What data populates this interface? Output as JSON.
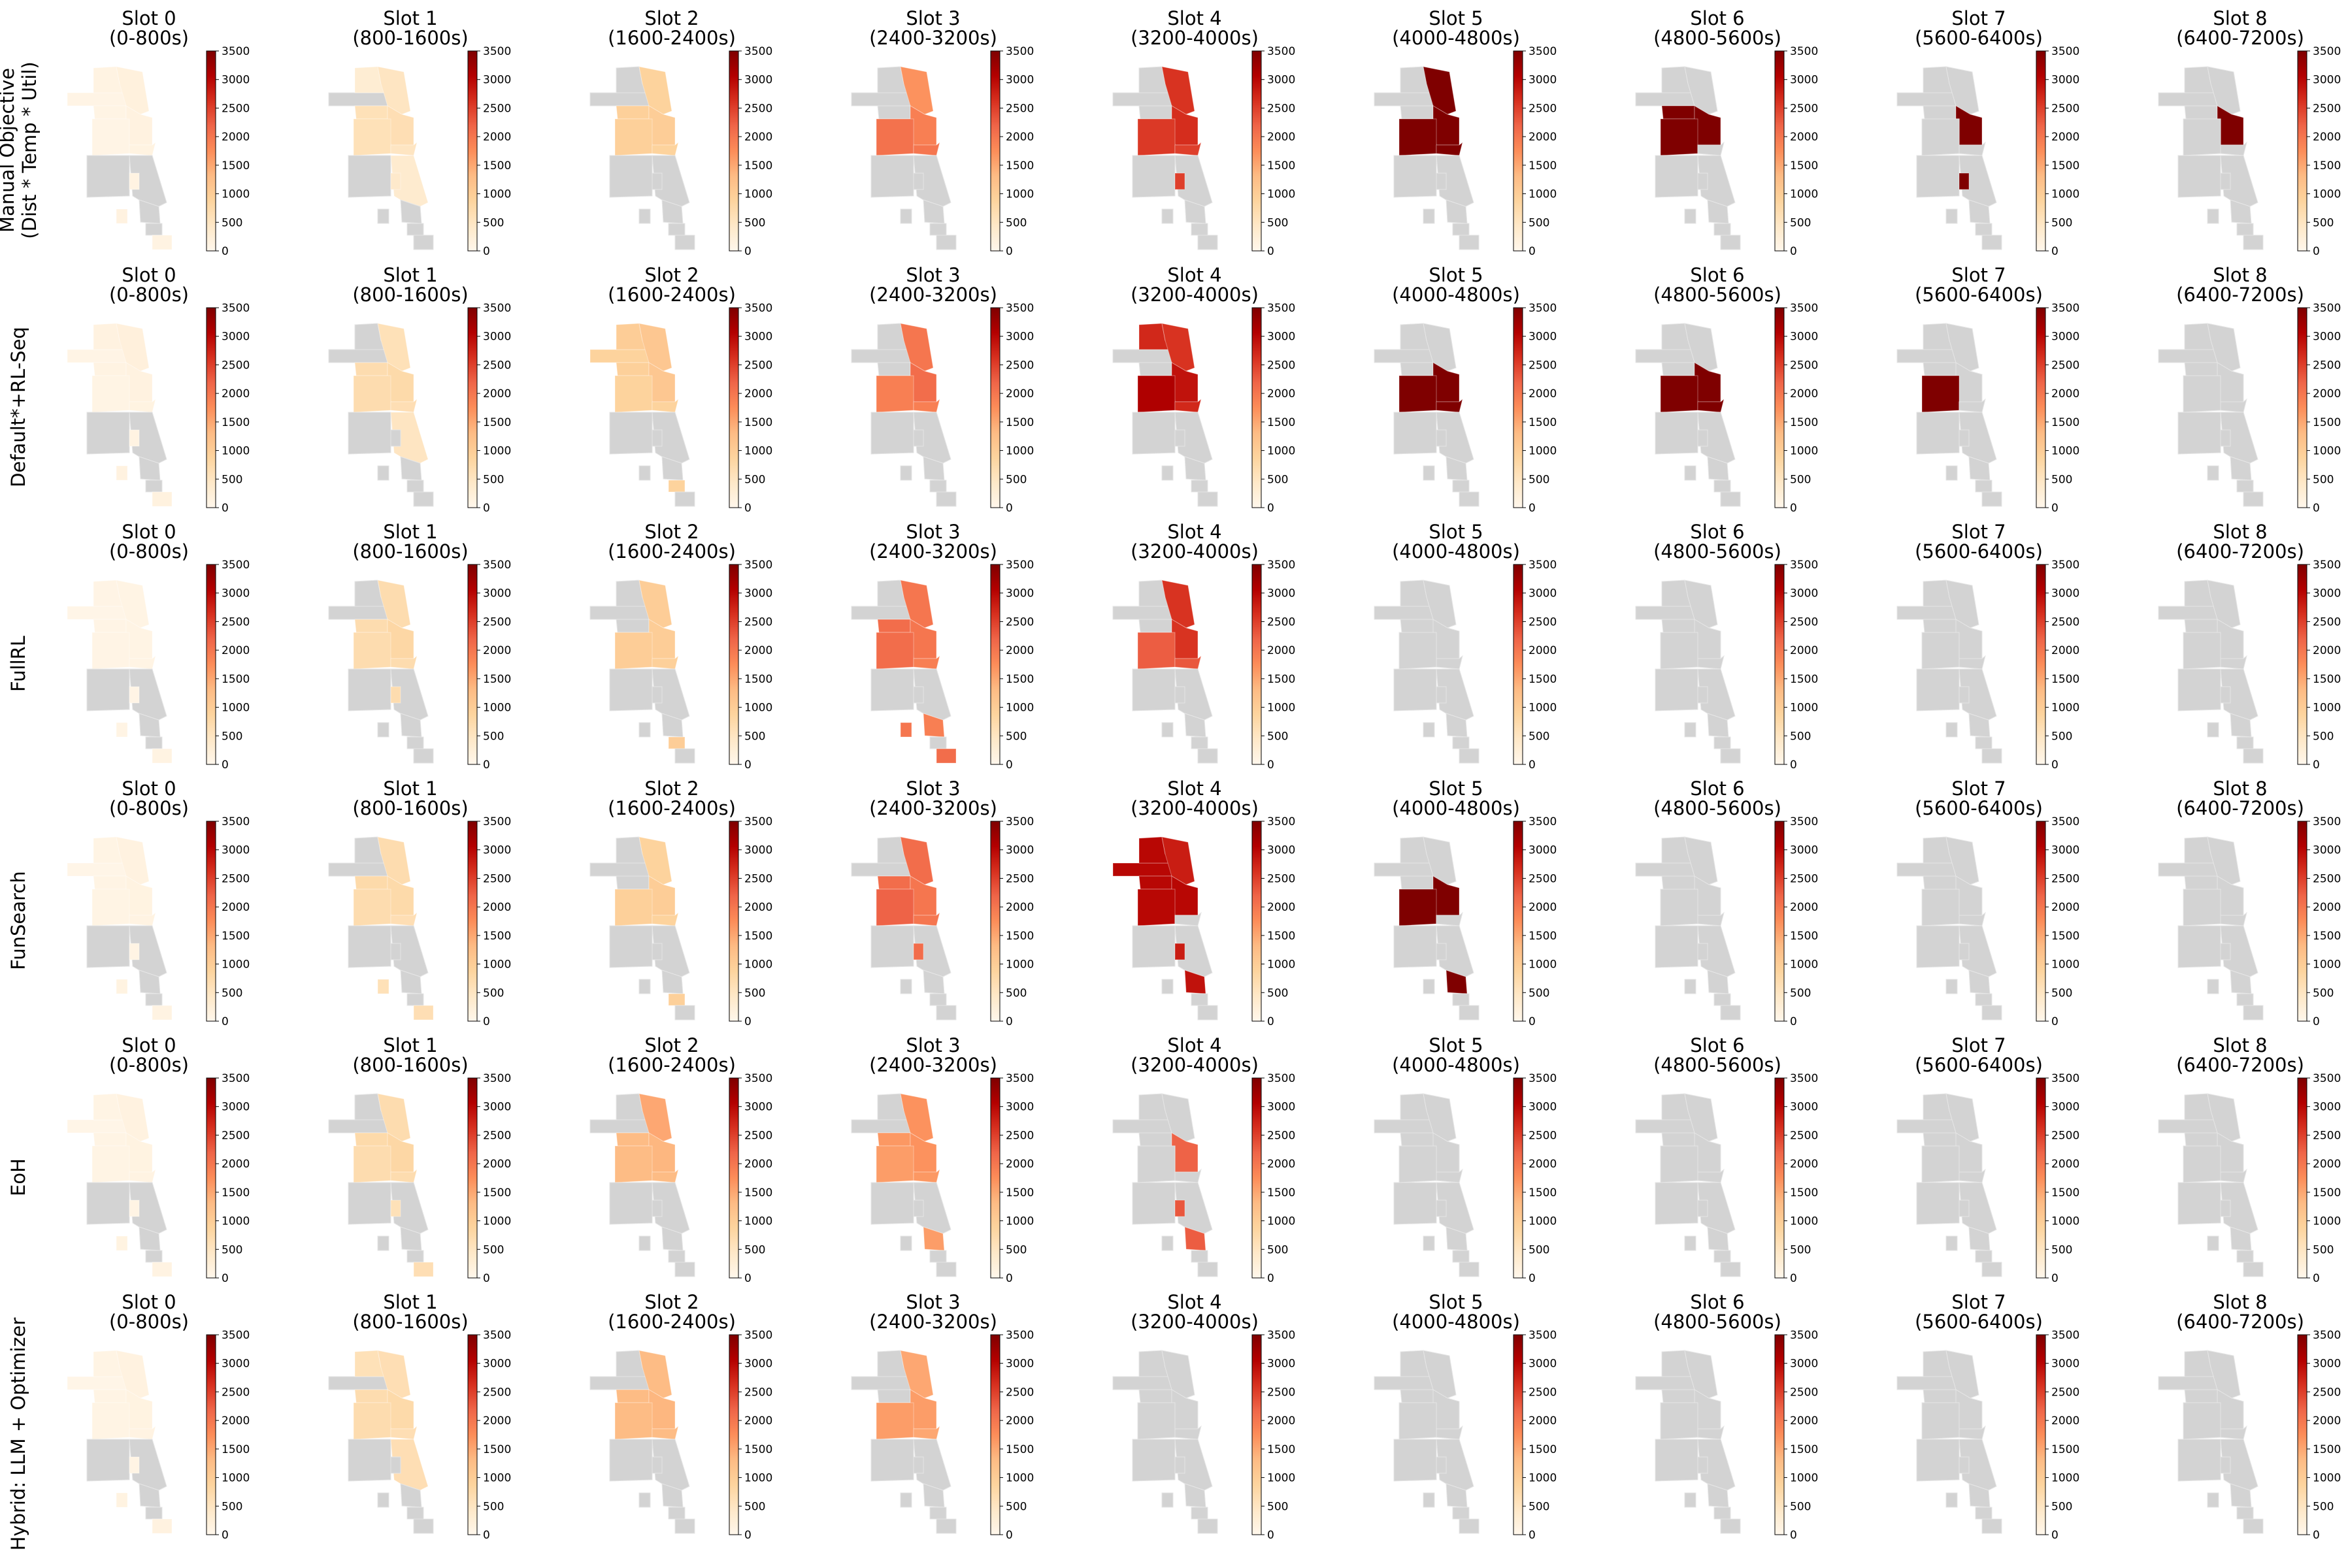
{
  "figure": {
    "rows": [
      "Manual Objective\n(Dist * Temp * Util)",
      "Default*+RL-Seq",
      "FullRL",
      "FunSearch",
      "EoH",
      "Hybrid: LLM + Optimizer"
    ],
    "slots": [
      {
        "name": "Slot 0",
        "range": "(0-800s)"
      },
      {
        "name": "Slot 1",
        "range": "(800-1600s)"
      },
      {
        "name": "Slot 2",
        "range": "(1600-2400s)"
      },
      {
        "name": "Slot 3",
        "range": "(2400-3200s)"
      },
      {
        "name": "Slot 4",
        "range": "(3200-4000s)"
      },
      {
        "name": "Slot 5",
        "range": "(4000-4800s)"
      },
      {
        "name": "Slot 6",
        "range": "(4800-5600s)"
      },
      {
        "name": "Slot 7",
        "range": "(5600-6400s)"
      },
      {
        "name": "Slot 8",
        "range": "(6400-7200s)"
      }
    ],
    "colorbar": {
      "ticks": [
        "0",
        "500",
        "1000",
        "1500",
        "2000",
        "2500",
        "3000",
        "3500"
      ],
      "vmin": 0,
      "vmax": 3500,
      "colormap": "OrRd",
      "stops": [
        "#fff7ec",
        "#fee8c8",
        "#fdd49e",
        "#fdbb84",
        "#fc8d59",
        "#ef6548",
        "#d7301f",
        "#b30000",
        "#7f0000"
      ]
    },
    "no_data_color": "#d3d3d3",
    "regions": [
      "NW",
      "NC",
      "NE",
      "LW",
      "LE",
      "CW",
      "CE",
      "SW",
      "SE",
      "SL",
      "SS1",
      "SS2",
      "FS1",
      "FS2"
    ],
    "values": [
      [
        {
          "NW": 80,
          "NC": 120,
          "NE": 180,
          "LW": 100,
          "LE": 150,
          "CW": 90,
          "CE": 130,
          "SL": 120,
          "SS2": 150,
          "FS2": 120
        },
        {
          "NC": 300,
          "NE": 500,
          "LW": 600,
          "LE": 650,
          "CW": 600,
          "CE": 500,
          "SE": 350,
          "SL": 400
        },
        {
          "NE": 900,
          "LW": 950,
          "LE": 1000,
          "CW": 950,
          "CE": 900
        },
        {
          "NE": 1700,
          "LE": 1900,
          "CW": 2050,
          "CE": 2000
        },
        {
          "NE": 2600,
          "LE": 2650,
          "CW": 2550,
          "CE": 2500,
          "SL": 2500
        },
        {
          "NE": 3500,
          "LE": 3500,
          "CW": 3500,
          "CE": 3500
        },
        {
          "LW": 3500,
          "LE": 3500,
          "CW": 3500
        },
        {
          "LE": 3500,
          "SL": 3500
        },
        {
          "LE": 3500
        }
      ],
      [
        {
          "NW": 80,
          "NC": 150,
          "NE": 200,
          "LW": 120,
          "LE": 150,
          "CW": 100,
          "CE": 130,
          "SL": 120,
          "SS2": 150,
          "FS2": 160
        },
        {
          "NE": 600,
          "LW": 700,
          "LE": 750,
          "CW": 700,
          "CE": 650,
          "SE": 500
        },
        {
          "NW": 900,
          "NC": 1000,
          "NE": 1100,
          "LW": 950,
          "LE": 1100,
          "CW": 900,
          "CE": 900,
          "FS1": 900
        },
        {
          "NE": 2000,
          "LE": 2100,
          "CW": 1900,
          "CE": 1900
        },
        {
          "NC": 2700,
          "NE": 2600,
          "LE": 2900,
          "CW": 3100,
          "CE": 2700
        },
        {
          "LE": 3500,
          "CW": 3500,
          "CE": 3500
        },
        {
          "LE": 3500,
          "CW": 3500,
          "CE": 3500
        },
        {
          "CW": 3500
        },
        {}
      ],
      [
        {
          "NW": 60,
          "NC": 80,
          "NE": 100,
          "LW": 80,
          "LE": 100,
          "CW": 80,
          "CE": 100,
          "SL": 80,
          "SS2": 100,
          "FS2": 120
        },
        {
          "NE": 700,
          "LW": 700,
          "LE": 800,
          "CW": 700,
          "CE": 700,
          "SL": 700
        },
        {
          "NE": 1000,
          "LE": 1000,
          "CW": 1000,
          "CE": 950,
          "FS1": 1000
        },
        {
          "NE": 2000,
          "LW": 2100,
          "LE": 2000,
          "CW": 2100,
          "CE": 1900,
          "SS1": 1900,
          "SS2": 2000,
          "FS2": 2100
        },
        {
          "NE": 2600,
          "LE": 2600,
          "CW": 2250,
          "CE": 2300
        },
        {},
        {},
        {},
        {}
      ],
      [
        {
          "NW": 60,
          "NC": 100,
          "NE": 150,
          "LW": 100,
          "LE": 130,
          "CW": 100,
          "CE": 120,
          "SL": 100,
          "SS2": 130,
          "FS2": 120
        },
        {
          "NE": 700,
          "LW": 750,
          "LE": 750,
          "CW": 700,
          "CE": 650,
          "SS2": 600,
          "FS2": 650
        },
        {
          "NE": 900,
          "LE": 1000,
          "CW": 950,
          "CE": 900,
          "FS1": 950
        },
        {
          "NE": 2100,
          "LW": 2100,
          "LE": 2000,
          "CW": 2200,
          "CE": 2000,
          "SL": 2100
        },
        {
          "NW": 3000,
          "NC": 3000,
          "NE": 2800,
          "LW": 3000,
          "LE": 3000,
          "CW": 3000,
          "SL": 2800,
          "SS1": 2900
        },
        {
          "LE": 3500,
          "CW": 3500,
          "SS1": 3500
        },
        {},
        {},
        {}
      ],
      [
        {
          "NW": 60,
          "NC": 100,
          "NE": 150,
          "LW": 100,
          "LE": 130,
          "CW": 100,
          "CE": 120,
          "SL": 100,
          "SS2": 130,
          "FS2": 120
        },
        {
          "NE": 700,
          "LW": 750,
          "LE": 800,
          "CW": 700,
          "CE": 700,
          "SL": 600,
          "FS2": 650
        },
        {
          "NE": 1500,
          "LW": 1300,
          "LE": 1350,
          "CW": 1300,
          "CE": 1300
        },
        {
          "NE": 1700,
          "LW": 1650,
          "LE": 1700,
          "CW": 1600,
          "CE": 1650,
          "SS1": 1600
        },
        {
          "LE": 2200,
          "SL": 2300,
          "SS1": 2250
        },
        {},
        {},
        {},
        {}
      ],
      [
        {
          "NW": 60,
          "NC": 100,
          "NE": 150,
          "LW": 100,
          "LE": 130,
          "CW": 100,
          "CE": 120,
          "SL": 100,
          "SS2": 130,
          "FS2": 150
        },
        {
          "NC": 600,
          "NE": 650,
          "LW": 700,
          "LE": 750,
          "CW": 700,
          "CE": 650,
          "SE": 650
        },
        {
          "NE": 1300,
          "LW": 1300,
          "LE": 1350,
          "CW": 1300,
          "CE": 1300
        },
        {
          "NE": 1500,
          "LE": 1600,
          "CW": 1600,
          "CE": 1500
        },
        {},
        {},
        {},
        {},
        {}
      ]
    ]
  }
}
